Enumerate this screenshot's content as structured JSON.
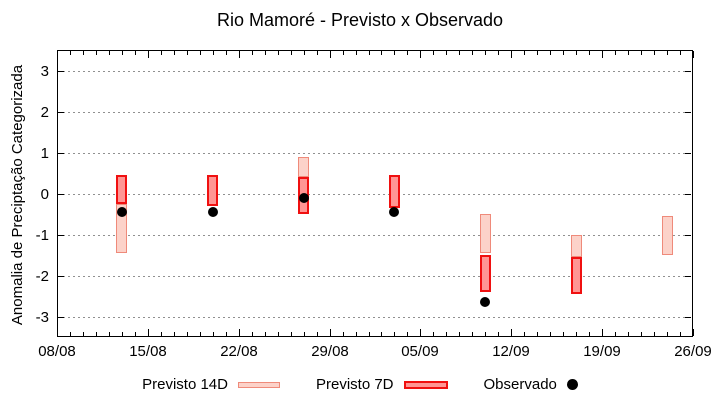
{
  "chart_data": {
    "type": "bar",
    "title": "Rio Mamoré - Previsto x Observado",
    "xlabel": "",
    "ylabel": "Anomalia de Preciptação Categorizada",
    "ylim": [
      -3.5,
      3.5
    ],
    "yticks": [
      3,
      2,
      1,
      0,
      -1,
      -2,
      -3
    ],
    "x_tick_labels": [
      "08/08",
      "15/08",
      "22/08",
      "29/08",
      "05/09",
      "12/09",
      "19/09",
      "26/09"
    ],
    "x_start_label": "08/08",
    "x_range_days": 49,
    "x_major_every_days": 7,
    "grid": "horizontal-dotted",
    "grid_color": "#909090",
    "legend_position": "bottom",
    "series": [
      {
        "name": "Previsto 14D",
        "type": "range-bar",
        "fill": "#fcd2c9",
        "border": "#ef8a7a",
        "border_px": 1.5,
        "points": [
          {
            "date": "13/08",
            "day": 5,
            "low": -1.45,
            "high": -0.25
          },
          {
            "date": "27/08",
            "day": 19,
            "low": 0.4,
            "high": 0.9
          },
          {
            "date": "10/09",
            "day": 33,
            "low": -1.45,
            "high": -0.5
          },
          {
            "date": "17/09",
            "day": 40,
            "low": -1.55,
            "high": -1.0
          },
          {
            "date": "24/09",
            "day": 47,
            "low": -1.5,
            "high": -0.55
          }
        ]
      },
      {
        "name": "Previsto 7D",
        "type": "range-bar",
        "fill": "#ff9694",
        "border": "#f01010",
        "border_px": 2,
        "points": [
          {
            "date": "13/08",
            "day": 5,
            "low": -0.25,
            "high": 0.45
          },
          {
            "date": "20/08",
            "day": 12,
            "low": -0.3,
            "high": 0.45
          },
          {
            "date": "27/08",
            "day": 19,
            "low": -0.5,
            "high": 0.4
          },
          {
            "date": "03/09",
            "day": 26,
            "low": -0.35,
            "high": 0.45
          },
          {
            "date": "10/09",
            "day": 33,
            "low": -2.4,
            "high": -1.5
          },
          {
            "date": "17/09",
            "day": 40,
            "low": -2.45,
            "high": -1.55
          }
        ]
      },
      {
        "name": "Observado",
        "type": "scatter",
        "color": "#000000",
        "points": [
          {
            "date": "13/08",
            "day": 5,
            "value": -0.45
          },
          {
            "date": "20/08",
            "day": 12,
            "value": -0.45
          },
          {
            "date": "27/08",
            "day": 19,
            "value": -0.1
          },
          {
            "date": "03/09",
            "day": 26,
            "value": -0.45
          },
          {
            "date": "10/09",
            "day": 33,
            "value": -2.65
          }
        ]
      }
    ]
  }
}
